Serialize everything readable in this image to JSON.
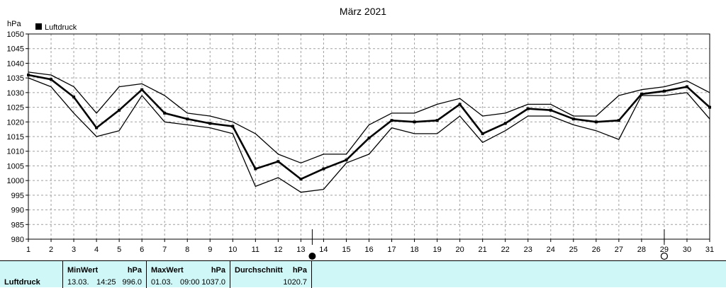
{
  "chart_data": {
    "type": "line",
    "title": "März 2021",
    "ylabel": "hPa",
    "legend": {
      "label": "Luftdruck",
      "placement": "top-left"
    },
    "ylim": [
      980,
      1050
    ],
    "y_ticks": [
      980,
      985,
      990,
      995,
      1000,
      1005,
      1010,
      1015,
      1020,
      1025,
      1030,
      1035,
      1040,
      1045,
      1050
    ],
    "x": [
      1,
      2,
      3,
      4,
      5,
      6,
      7,
      8,
      9,
      10,
      11,
      12,
      13,
      14,
      15,
      16,
      17,
      18,
      19,
      20,
      21,
      22,
      23,
      24,
      25,
      26,
      27,
      28,
      29,
      30,
      31
    ],
    "x_tick_labels": [
      "1",
      "2",
      "3",
      "4",
      "5",
      "6",
      "7",
      "8",
      "9",
      "10",
      "11",
      "12",
      "13",
      "14",
      "15",
      "16",
      "17",
      "18",
      "19",
      "20",
      "21",
      "22",
      "23",
      "24",
      "25",
      "26",
      "27",
      "28",
      "29",
      "30",
      "31"
    ],
    "grid": true,
    "series": [
      {
        "role": "max",
        "values": [
          1037,
          1036,
          1032,
          1023,
          1032,
          1033,
          1029,
          1023,
          1022,
          1020,
          1016,
          1009,
          1006,
          1009,
          1009,
          1019,
          1023,
          1023,
          1026,
          1028,
          1022,
          1023,
          1026,
          1026,
          1022,
          1022,
          1029,
          1031,
          1032,
          1034,
          1030
        ]
      },
      {
        "role": "mean",
        "values": [
          1036,
          1034.5,
          1028.5,
          1018,
          1024,
          1031,
          1023,
          1021,
          1019.5,
          1018.5,
          1004,
          1006.5,
          1000.5,
          1004,
          1007,
          1014.5,
          1020.5,
          1020,
          1020.5,
          1026,
          1016,
          1019.5,
          1024.5,
          1024,
          1021,
          1020,
          1020.5,
          1029.5,
          1030.5,
          1032,
          1025
        ]
      },
      {
        "role": "min",
        "values": [
          1035,
          1032,
          1023,
          1015,
          1017,
          1029,
          1020,
          1019,
          1018,
          1016,
          998,
          1001,
          996,
          997,
          1006,
          1009,
          1018,
          1016,
          1016,
          1022,
          1013,
          1017,
          1022,
          1022,
          1019,
          1017,
          1014,
          1029,
          1029,
          1030,
          1021
        ]
      }
    ],
    "markers": [
      {
        "x": 13.5,
        "symbol": "new-moon"
      },
      {
        "x": 29,
        "symbol": "full-moon"
      }
    ]
  },
  "footer": {
    "station_label": "Luftdruck",
    "min": {
      "header": "MinWert",
      "unit": "hPa",
      "date": "13.03.",
      "time": "14:25",
      "value": "996.0"
    },
    "max": {
      "header": "MaxWert",
      "unit": "hPa",
      "date": "01.03.",
      "time": "09:00",
      "value": "1037.0"
    },
    "avg": {
      "header": "Durchschnitt",
      "unit": "hPa",
      "value": "1020.7"
    }
  },
  "colors": {
    "footer_bg": "#cff7f7",
    "grid": "#a0a0a0",
    "line": "#000000"
  }
}
